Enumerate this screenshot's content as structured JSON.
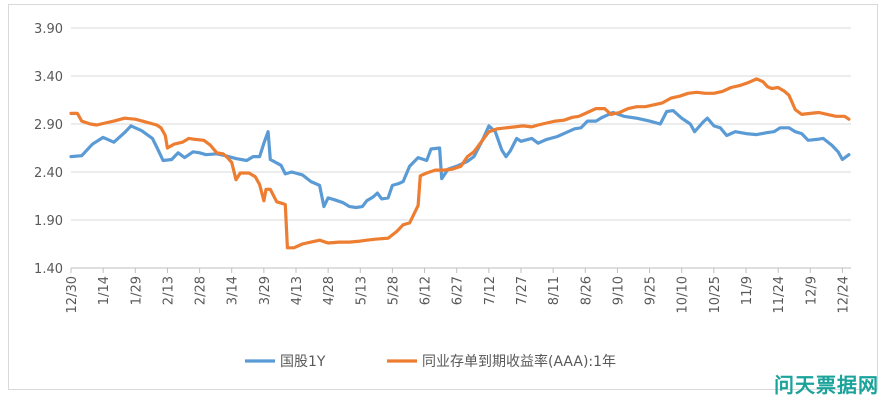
{
  "watermark": "问天票据网",
  "chart_data": {
    "type": "line",
    "title": "",
    "xlabel": "",
    "ylabel": "",
    "ylim": [
      1.4,
      3.9
    ],
    "yticks": [
      "1.40",
      "1.90",
      "2.40",
      "2.90",
      "3.40",
      "3.90"
    ],
    "x_tick_labels": [
      "12/30",
      "1/14",
      "1/29",
      "2/13",
      "2/28",
      "3/14",
      "3/29",
      "4/13",
      "4/28",
      "5/13",
      "5/28",
      "6/12",
      "6/27",
      "7/12",
      "7/27",
      "8/11",
      "8/26",
      "9/10",
      "9/25",
      "10/10",
      "10/25",
      "11/9",
      "11/24",
      "12/9",
      "12/24"
    ],
    "grid": "horizontal",
    "legend_position": "bottom",
    "x_span_days": 364,
    "series": [
      {
        "name": "国股1Y",
        "color": "#5b9bd5",
        "points": [
          [
            0,
            2.56
          ],
          [
            5,
            2.57
          ],
          [
            10,
            2.69
          ],
          [
            15,
            2.76
          ],
          [
            20,
            2.71
          ],
          [
            25,
            2.81
          ],
          [
            28,
            2.88
          ],
          [
            33,
            2.83
          ],
          [
            38,
            2.75
          ],
          [
            40,
            2.66
          ],
          [
            43,
            2.52
          ],
          [
            47,
            2.53
          ],
          [
            50,
            2.6
          ],
          [
            53,
            2.55
          ],
          [
            57,
            2.61
          ],
          [
            60,
            2.6
          ],
          [
            63,
            2.58
          ],
          [
            68,
            2.59
          ],
          [
            72,
            2.57
          ],
          [
            77,
            2.54
          ],
          [
            82,
            2.52
          ],
          [
            85,
            2.56
          ],
          [
            88,
            2.56
          ],
          [
            90,
            2.7
          ],
          [
            92,
            2.82
          ],
          [
            93,
            2.53
          ],
          [
            98,
            2.47
          ],
          [
            100,
            2.38
          ],
          [
            103,
            2.4
          ],
          [
            108,
            2.37
          ],
          [
            112,
            2.3
          ],
          [
            116,
            2.26
          ],
          [
            118,
            2.04
          ],
          [
            120,
            2.13
          ],
          [
            123,
            2.11
          ],
          [
            127,
            2.08
          ],
          [
            130,
            2.04
          ],
          [
            133,
            2.03
          ],
          [
            136,
            2.04
          ],
          [
            138,
            2.1
          ],
          [
            141,
            2.14
          ],
          [
            143,
            2.18
          ],
          [
            145,
            2.12
          ],
          [
            148,
            2.13
          ],
          [
            150,
            2.26
          ],
          [
            153,
            2.28
          ],
          [
            155,
            2.3
          ],
          [
            158,
            2.46
          ],
          [
            162,
            2.55
          ],
          [
            166,
            2.52
          ],
          [
            168,
            2.64
          ],
          [
            172,
            2.65
          ],
          [
            173,
            2.33
          ],
          [
            176,
            2.43
          ],
          [
            180,
            2.46
          ],
          [
            185,
            2.51
          ],
          [
            188,
            2.56
          ],
          [
            192,
            2.73
          ],
          [
            195,
            2.88
          ],
          [
            198,
            2.82
          ],
          [
            201,
            2.63
          ],
          [
            203,
            2.56
          ],
          [
            205,
            2.62
          ],
          [
            208,
            2.75
          ],
          [
            210,
            2.72
          ],
          [
            215,
            2.75
          ],
          [
            218,
            2.7
          ],
          [
            222,
            2.74
          ],
          [
            227,
            2.77
          ],
          [
            230,
            2.8
          ],
          [
            235,
            2.85
          ],
          [
            238,
            2.86
          ],
          [
            241,
            2.93
          ],
          [
            245,
            2.93
          ],
          [
            248,
            2.97
          ],
          [
            253,
            3.02
          ],
          [
            258,
            2.98
          ],
          [
            264,
            2.96
          ],
          [
            270,
            2.93
          ],
          [
            275,
            2.9
          ],
          [
            278,
            3.03
          ],
          [
            281,
            3.04
          ],
          [
            285,
            2.96
          ],
          [
            289,
            2.9
          ],
          [
            291,
            2.82
          ],
          [
            295,
            2.92
          ],
          [
            297,
            2.96
          ],
          [
            300,
            2.88
          ],
          [
            303,
            2.86
          ],
          [
            306,
            2.78
          ],
          [
            310,
            2.82
          ],
          [
            315,
            2.8
          ],
          [
            320,
            2.79
          ],
          [
            325,
            2.81
          ],
          [
            328,
            2.82
          ],
          [
            331,
            2.86
          ],
          [
            335,
            2.86
          ],
          [
            338,
            2.82
          ],
          [
            341,
            2.8
          ],
          [
            344,
            2.73
          ],
          [
            348,
            2.74
          ],
          [
            351,
            2.75
          ],
          [
            355,
            2.68
          ],
          [
            358,
            2.61
          ],
          [
            360,
            2.53
          ],
          [
            363,
            2.58
          ]
        ]
      },
      {
        "name": "同业存单到期收益率(AAA):1年",
        "color": "#ed7d31",
        "points": [
          [
            0,
            3.01
          ],
          [
            3,
            3.01
          ],
          [
            5,
            2.93
          ],
          [
            9,
            2.9
          ],
          [
            12,
            2.89
          ],
          [
            16,
            2.91
          ],
          [
            20,
            2.93
          ],
          [
            25,
            2.96
          ],
          [
            30,
            2.95
          ],
          [
            35,
            2.92
          ],
          [
            40,
            2.89
          ],
          [
            42,
            2.86
          ],
          [
            44,
            2.78
          ],
          [
            45,
            2.65
          ],
          [
            48,
            2.69
          ],
          [
            52,
            2.71
          ],
          [
            55,
            2.75
          ],
          [
            58,
            2.74
          ],
          [
            62,
            2.73
          ],
          [
            65,
            2.68
          ],
          [
            68,
            2.6
          ],
          [
            71,
            2.59
          ],
          [
            73,
            2.55
          ],
          [
            75,
            2.5
          ],
          [
            77,
            2.32
          ],
          [
            79,
            2.39
          ],
          [
            83,
            2.39
          ],
          [
            86,
            2.35
          ],
          [
            88,
            2.27
          ],
          [
            90,
            2.1
          ],
          [
            91,
            2.22
          ],
          [
            93,
            2.22
          ],
          [
            96,
            2.09
          ],
          [
            99,
            2.07
          ],
          [
            100,
            2.06
          ],
          [
            101,
            1.61
          ],
          [
            104,
            1.61
          ],
          [
            108,
            1.65
          ],
          [
            112,
            1.67
          ],
          [
            116,
            1.69
          ],
          [
            120,
            1.66
          ],
          [
            125,
            1.67
          ],
          [
            130,
            1.67
          ],
          [
            135,
            1.68
          ],
          [
            138,
            1.69
          ],
          [
            142,
            1.7
          ],
          [
            148,
            1.71
          ],
          [
            152,
            1.78
          ],
          [
            155,
            1.85
          ],
          [
            158,
            1.87
          ],
          [
            160,
            1.96
          ],
          [
            162,
            2.05
          ],
          [
            163,
            2.36
          ],
          [
            166,
            2.39
          ],
          [
            170,
            2.42
          ],
          [
            174,
            2.42
          ],
          [
            178,
            2.43
          ],
          [
            182,
            2.46
          ],
          [
            185,
            2.56
          ],
          [
            188,
            2.61
          ],
          [
            191,
            2.7
          ],
          [
            195,
            2.82
          ],
          [
            199,
            2.85
          ],
          [
            203,
            2.86
          ],
          [
            207,
            2.87
          ],
          [
            211,
            2.88
          ],
          [
            215,
            2.87
          ],
          [
            218,
            2.89
          ],
          [
            222,
            2.91
          ],
          [
            226,
            2.93
          ],
          [
            230,
            2.94
          ],
          [
            234,
            2.97
          ],
          [
            237,
            2.98
          ],
          [
            241,
            3.02
          ],
          [
            245,
            3.06
          ],
          [
            249,
            3.06
          ],
          [
            252,
            3.0
          ],
          [
            256,
            3.02
          ],
          [
            260,
            3.06
          ],
          [
            264,
            3.08
          ],
          [
            268,
            3.08
          ],
          [
            272,
            3.1
          ],
          [
            276,
            3.12
          ],
          [
            280,
            3.17
          ],
          [
            284,
            3.19
          ],
          [
            288,
            3.22
          ],
          [
            292,
            3.23
          ],
          [
            296,
            3.22
          ],
          [
            300,
            3.22
          ],
          [
            304,
            3.24
          ],
          [
            308,
            3.28
          ],
          [
            312,
            3.3
          ],
          [
            316,
            3.33
          ],
          [
            320,
            3.37
          ],
          [
            323,
            3.34
          ],
          [
            325,
            3.29
          ],
          [
            327,
            3.27
          ],
          [
            330,
            3.28
          ],
          [
            333,
            3.24
          ],
          [
            335,
            3.2
          ],
          [
            338,
            3.05
          ],
          [
            341,
            3.0
          ],
          [
            345,
            3.01
          ],
          [
            349,
            3.02
          ],
          [
            353,
            3.0
          ],
          [
            357,
            2.98
          ],
          [
            361,
            2.98
          ],
          [
            363,
            2.95
          ]
        ]
      }
    ]
  }
}
